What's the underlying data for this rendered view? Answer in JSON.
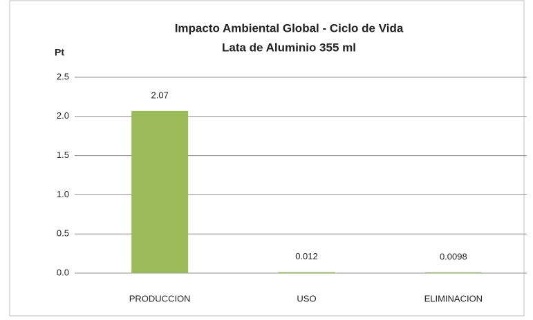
{
  "chart_data": {
    "type": "bar",
    "title": "Impacto Ambiental Global - Ciclo de Vida",
    "subtitle": "Lata de Aluminio 355 ml",
    "y_label": "Pt",
    "categories": [
      "PRODUCCION",
      "USO",
      "ELIMINACION"
    ],
    "values": [
      2.07,
      0.012,
      0.0098
    ],
    "color": "#9bbb59",
    "ylim": [
      0,
      2.5
    ],
    "yticks": [
      {
        "value": 0,
        "label": "0.0"
      },
      0.5,
      {
        "value": 1,
        "label": "1.0"
      },
      1.5,
      {
        "value": 2,
        "label": "2.0"
      },
      2.5
    ],
    "grid": true
  }
}
